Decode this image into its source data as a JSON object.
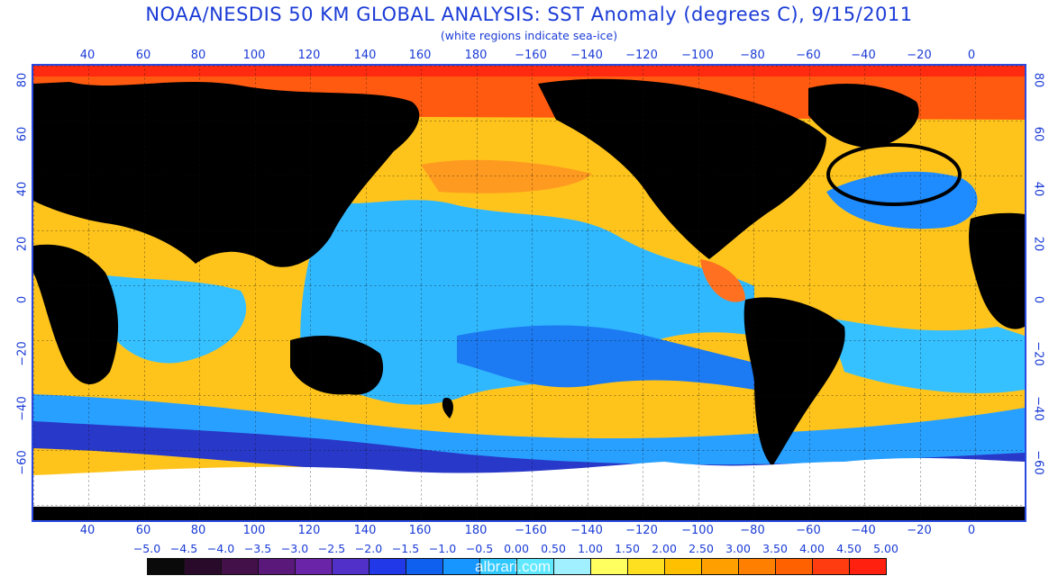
{
  "header": {
    "title": "NOAA/NESDIS 50 KM GLOBAL ANALYSIS: SST Anomaly (degrees C), 9/15/2011",
    "subtitle": "(white regions indicate sea-ice)"
  },
  "axes": {
    "lon_labels": [
      "40",
      "60",
      "80",
      "100",
      "120",
      "140",
      "160",
      "180",
      "−160",
      "−140",
      "−120",
      "−100",
      "−80",
      "−60",
      "−40",
      "−20",
      "0"
    ],
    "lat_labels": [
      "80",
      "60",
      "40",
      "20",
      "0",
      "−20",
      "−40",
      "−60"
    ]
  },
  "colorbar": {
    "labels": [
      "−5.0",
      "−4.5",
      "−4.0",
      "−3.5",
      "−3.0",
      "−2.5",
      "−2.0",
      "−1.5",
      "−1.0",
      "−0.5",
      "0.00",
      "0.50",
      "1.00",
      "1.50",
      "2.00",
      "2.50",
      "3.00",
      "3.50",
      "4.00",
      "4.50",
      "5.00"
    ],
    "colors": [
      "#0a0a0a",
      "#2a0a2a",
      "#44104a",
      "#5a187a",
      "#6a24a8",
      "#5030c8",
      "#2038e8",
      "#1060f0",
      "#1896ff",
      "#30c8ff",
      "#60e8ff",
      "#a0f0ff",
      "#ffff60",
      "#ffe020",
      "#ffc000",
      "#ffa000",
      "#ff8000",
      "#ff6000",
      "#ff3c10",
      "#ff2010"
    ]
  },
  "colors": {
    "land": "#000000",
    "ice": "#ffffff",
    "warm": "#ffb000",
    "cool": "#18a8ff",
    "label": "#1a3bd6"
  },
  "watermark": "albrari.com"
}
